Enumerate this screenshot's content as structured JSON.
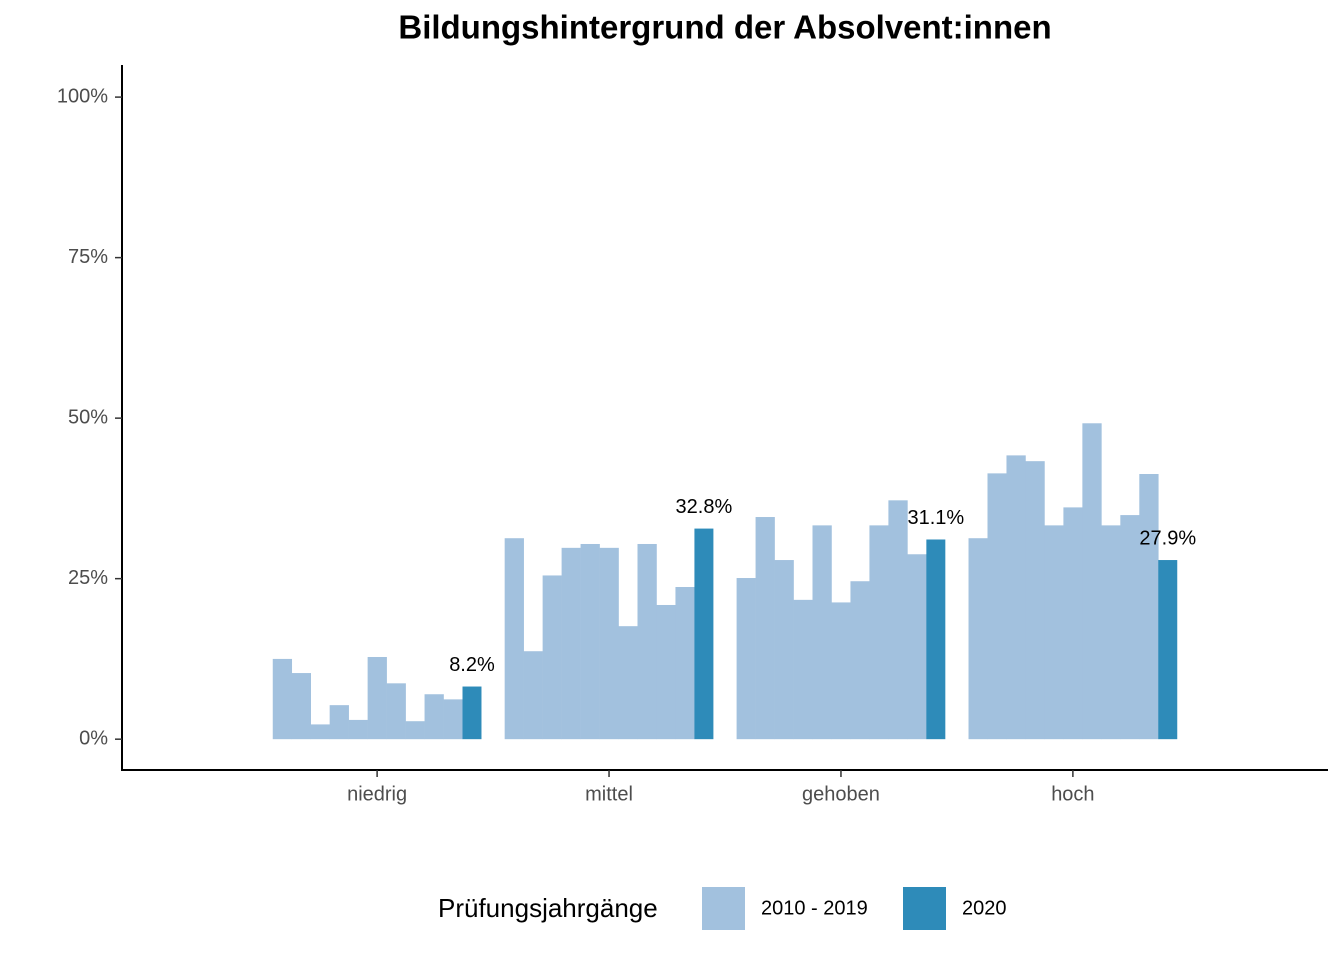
{
  "chart_data": {
    "type": "bar",
    "title": "Bildungshintergrund der Absolvent:innen",
    "categories": [
      "niedrig",
      "mittel",
      "gehoben",
      "hoch"
    ],
    "series": [
      {
        "name": "2010 - 2019",
        "color": "#a2c1de",
        "values": [
          [
            12.5,
            10.3,
            2.3,
            5.3,
            3.0,
            12.8,
            8.7,
            2.8,
            7.0,
            6.2
          ],
          [
            31.3,
            13.7,
            25.5,
            29.8,
            30.4,
            29.8,
            17.6,
            30.4,
            20.9,
            23.7
          ],
          [
            25.1,
            34.6,
            27.9,
            21.7,
            33.3,
            21.3,
            24.6,
            33.3,
            37.2,
            28.8
          ],
          [
            31.3,
            41.4,
            44.2,
            43.3,
            33.3,
            36.1,
            49.2,
            33.3,
            34.9,
            41.3
          ]
        ]
      },
      {
        "name": "2020",
        "color": "#2e8bb9",
        "values": [
          8.2,
          32.8,
          31.1,
          27.9
        ],
        "value_labels": [
          "8.2%",
          "32.8%",
          "31.1%",
          "27.9%"
        ]
      }
    ],
    "ylim": [
      -4.8,
      105
    ],
    "yticks": [
      {
        "value": 0,
        "label": "0%"
      },
      {
        "value": 25,
        "label": "25%"
      },
      {
        "value": 50,
        "label": "50%"
      },
      {
        "value": 75,
        "label": "75%"
      },
      {
        "value": 100,
        "label": "100%"
      }
    ],
    "legend_title": "Prüfungsjahrgänge",
    "legend_position": "bottom",
    "grid": false
  }
}
